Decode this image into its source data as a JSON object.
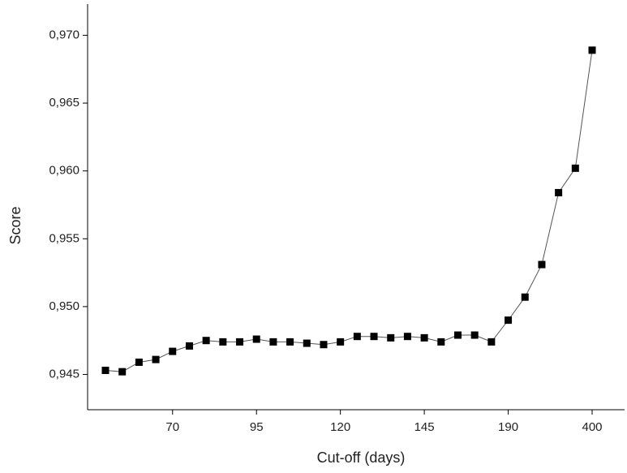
{
  "chart_data": {
    "type": "line",
    "x_label": "Cut-off (days)",
    "y_label": "Score",
    "categories": [
      null,
      null,
      null,
      null,
      "70",
      null,
      null,
      null,
      null,
      "95",
      null,
      null,
      null,
      null,
      "120",
      null,
      null,
      null,
      null,
      "145",
      null,
      null,
      null,
      null,
      "190",
      null,
      null,
      null,
      null,
      "400"
    ],
    "values": [
      0.9453,
      0.9452,
      0.9459,
      0.9461,
      0.9467,
      0.9471,
      0.9475,
      0.9474,
      0.9474,
      0.9476,
      0.9474,
      0.9474,
      0.9473,
      0.9472,
      0.9474,
      0.9478,
      0.9478,
      0.9477,
      0.9478,
      0.9477,
      0.9474,
      0.9479,
      0.9479,
      0.9474,
      0.949,
      0.9507,
      0.9531,
      0.9584,
      0.9602,
      0.9689
    ],
    "color": "#000000",
    "line_color": "#555555",
    "ylim": [
      0.9424,
      0.9723
    ],
    "yticks": [
      {
        "value": 0.945,
        "label": "0,945"
      },
      {
        "value": 0.95,
        "label": "0,950"
      },
      {
        "value": 0.955,
        "label": "0,955"
      },
      {
        "value": 0.96,
        "label": "0,960"
      },
      {
        "value": 0.965,
        "label": "0,965"
      },
      {
        "value": 0.97,
        "label": "0,970"
      }
    ]
  }
}
